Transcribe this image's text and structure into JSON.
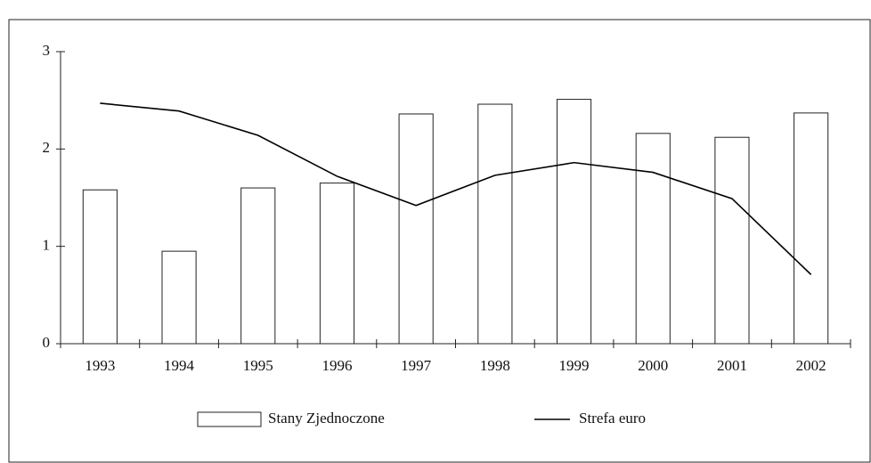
{
  "chart_data": {
    "type": "bar_line",
    "categories": [
      "1993",
      "1994",
      "1995",
      "1996",
      "1997",
      "1998",
      "1999",
      "2000",
      "2001",
      "2002"
    ],
    "series": [
      {
        "name": "Stany Zjednoczone",
        "type": "bar",
        "color": "#ffffff",
        "values": [
          1.58,
          0.95,
          1.6,
          1.65,
          2.36,
          2.46,
          2.51,
          2.16,
          2.12,
          2.37
        ]
      },
      {
        "name": "Strefa euro",
        "type": "line",
        "color": "#000000",
        "values": [
          2.47,
          2.39,
          2.14,
          1.72,
          1.42,
          1.73,
          1.86,
          1.76,
          1.49,
          0.71
        ]
      }
    ],
    "ylim": [
      0,
      3
    ],
    "yticks": [
      0,
      1,
      2,
      3
    ],
    "grid": false,
    "legend": "bottom"
  }
}
